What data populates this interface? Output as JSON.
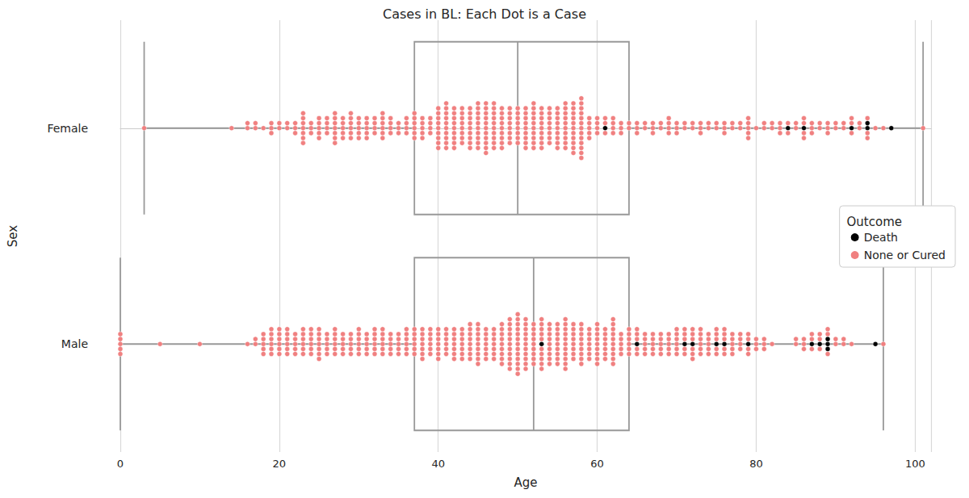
{
  "chart_data": {
    "type": "swarm_box",
    "title": "Cases in BL: Each Dot is a Case",
    "x_label": "Age",
    "y_label": "Sex",
    "categories": [
      "Female",
      "Male"
    ],
    "xlim": [
      0,
      102
    ],
    "xticks": [
      0,
      20,
      40,
      60,
      80,
      100
    ],
    "grid": true,
    "legend": "right",
    "legend_title": "Outcome",
    "boxes": [
      {
        "category": "Female",
        "min": 3,
        "q1": 37,
        "median": 50,
        "q3": 64,
        "max": 101
      },
      {
        "category": "Male",
        "min": 0,
        "q1": 37,
        "median": 52,
        "q3": 64,
        "max": 96
      }
    ],
    "series": [
      {
        "name": "Death",
        "color": "#000000",
        "marker": "circle",
        "groups": [
          {
            "category": "Female",
            "x": [
              61,
              84,
              86,
              92,
              94,
              97
            ],
            "counts": [
              1,
              1,
              1,
              1,
              2,
              1
            ]
          },
          {
            "category": "Male",
            "x": [
              53,
              65,
              71,
              72,
              75,
              76,
              79,
              87,
              88,
              89,
              95
            ],
            "counts": [
              1,
              1,
              1,
              1,
              1,
              1,
              1,
              1,
              1,
              3,
              1
            ]
          }
        ]
      },
      {
        "name": "None or Cured",
        "color": "#f08080",
        "marker": "circle",
        "groups": [
          {
            "category": "Female",
            "x": [
              3,
              14,
              16,
              17,
              18,
              19,
              20,
              21,
              22,
              23,
              24,
              25,
              26,
              27,
              28,
              29,
              30,
              31,
              32,
              33,
              34,
              35,
              36,
              37,
              38,
              39,
              40,
              41,
              42,
              43,
              44,
              45,
              46,
              47,
              48,
              49,
              50,
              51,
              52,
              53,
              54,
              55,
              56,
              57,
              58,
              59,
              60,
              61,
              62,
              63,
              64,
              65,
              66,
              67,
              68,
              69,
              70,
              71,
              72,
              73,
              74,
              75,
              76,
              77,
              78,
              79,
              80,
              81,
              82,
              83,
              84,
              85,
              86,
              87,
              88,
              89,
              90,
              91,
              92,
              93,
              94,
              95,
              96,
              101
            ],
            "counts": [
              1,
              1,
              2,
              2,
              1,
              3,
              2,
              2,
              3,
              7,
              3,
              5,
              4,
              7,
              5,
              6,
              5,
              5,
              4,
              6,
              4,
              3,
              4,
              6,
              5,
              4,
              9,
              10,
              9,
              8,
              9,
              10,
              11,
              10,
              9,
              8,
              8,
              9,
              10,
              9,
              8,
              9,
              10,
              11,
              13,
              5,
              4,
              3,
              4,
              3,
              2,
              3,
              2,
              3,
              2,
              4,
              3,
              2,
              2,
              3,
              2,
              2,
              3,
              2,
              2,
              5,
              1,
              2,
              2,
              3,
              2,
              2,
              4,
              3,
              2,
              3,
              2,
              2,
              3,
              2,
              3,
              1,
              1,
              1
            ]
          },
          {
            "category": "Male",
            "x": [
              0,
              5,
              10,
              16,
              17,
              18,
              19,
              20,
              21,
              22,
              23,
              24,
              25,
              26,
              27,
              28,
              29,
              30,
              31,
              32,
              33,
              34,
              35,
              36,
              37,
              38,
              39,
              40,
              41,
              42,
              43,
              44,
              45,
              46,
              47,
              48,
              49,
              50,
              51,
              52,
              53,
              54,
              55,
              56,
              57,
              58,
              59,
              60,
              61,
              62,
              63,
              64,
              65,
              66,
              67,
              68,
              69,
              70,
              71,
              72,
              73,
              74,
              75,
              76,
              77,
              78,
              79,
              80,
              81,
              82,
              85,
              86,
              87,
              88,
              89,
              90,
              91,
              92,
              96
            ],
            "counts": [
              5,
              1,
              1,
              1,
              2,
              5,
              6,
              6,
              6,
              5,
              6,
              6,
              7,
              5,
              6,
              5,
              5,
              6,
              5,
              6,
              6,
              5,
              5,
              6,
              6,
              7,
              6,
              7,
              6,
              7,
              7,
              8,
              9,
              7,
              7,
              9,
              11,
              13,
              11,
              9,
              10,
              9,
              9,
              11,
              8,
              9,
              7,
              9,
              7,
              10,
              5,
              6,
              5,
              5,
              5,
              5,
              5,
              6,
              5,
              6,
              6,
              5,
              5,
              5,
              5,
              4,
              4,
              3,
              3,
              1,
              2,
              3,
              3,
              3,
              3,
              2,
              2,
              1,
              1
            ]
          }
        ]
      }
    ]
  }
}
